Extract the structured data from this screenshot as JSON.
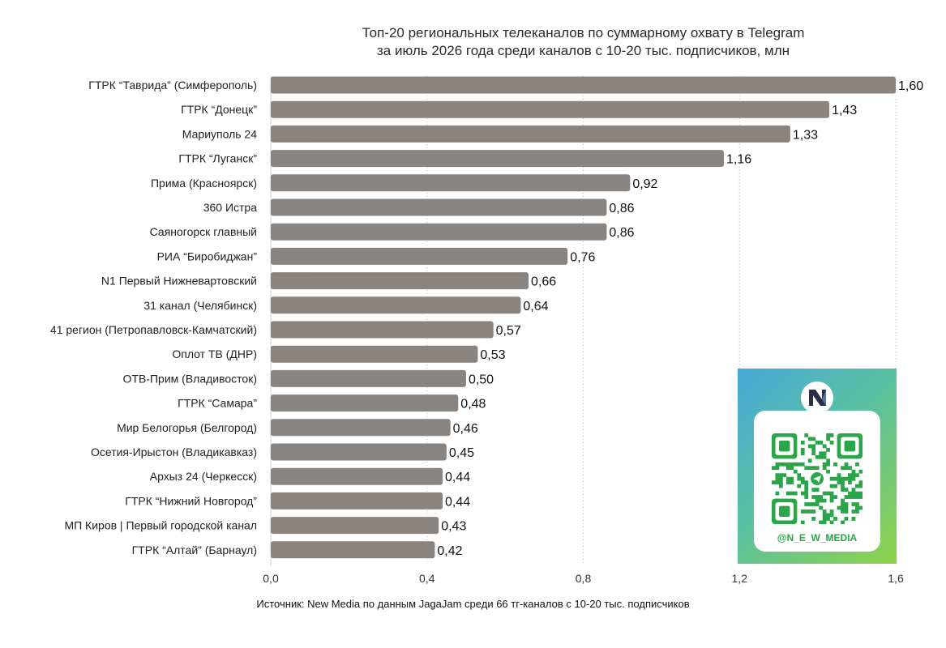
{
  "chart_data": {
    "type": "bar",
    "orientation": "horizontal",
    "title": "Топ-20 региональных телеканалов по суммарному охвату в Telegram за июль 2026 года среди каналов с 10-20 тыс. подписчиков, млн",
    "title_lines": [
      "Топ-20 региональных телеканалов по суммарному охвату в Telegram",
      "за июль 2026 года среди каналов с 10-20 тыс. подписчиков, млн"
    ],
    "categories": [
      "ГТРК “Таврида” (Симферополь)",
      "ГТРК “Донецк”",
      "Мариуполь 24",
      "ГТРК “Луганск”",
      "Прима (Красноярск)",
      "360 Истра",
      "Саяногорск главный",
      "РИА “Биробиджан”",
      "N1 Первый Нижневартовский",
      "31 канал (Челябинск)",
      "41 регион (Петропавловск-Камчатский)",
      "Оплот ТВ (ДНР)",
      "ОТВ-Прим (Владивосток)",
      "ГТРК “Самара”",
      "Мир Белогорья (Белгород)",
      "Осетия-Ирыстон (Владикавказ)",
      "Архыз 24 (Черкесск)",
      "ГТРК “Нижний Новгород”",
      "МП Киров | Первый городской канал",
      "ГТРК “Алтай” (Барнаул)"
    ],
    "values": [
      1.6,
      1.43,
      1.33,
      1.16,
      0.92,
      0.86,
      0.86,
      0.76,
      0.66,
      0.64,
      0.57,
      0.53,
      0.5,
      0.48,
      0.46,
      0.45,
      0.44,
      0.44,
      0.43,
      0.42
    ],
    "value_labels": [
      "1,60",
      "1,43",
      "1,33",
      "1,16",
      "0,92",
      "0,86",
      "0,86",
      "0,76",
      "0,66",
      "0,64",
      "0,57",
      "0,53",
      "0,50",
      "0,48",
      "0,46",
      "0,45",
      "0,44",
      "0,44",
      "0,43",
      "0,42"
    ],
    "xlim": [
      0,
      1.6
    ],
    "xticks": [
      0,
      0.4,
      0.8,
      1.2,
      1.6
    ],
    "xtick_labels": [
      "0,0",
      "0,4",
      "0,8",
      "1,2",
      "1,6"
    ],
    "grid": "vertical dotted",
    "bar_color": "#8a8480",
    "source": "Источник: New Media по данным JagaJam среди 66 тг-каналов с 10-20 тыс. подписчиков"
  },
  "qr_card": {
    "handle": "@N_E_W_MEDIA",
    "logo_icon": "new-media-logo-icon",
    "telegram_icon": "telegram-icon",
    "gradient_start": "#49a9d9",
    "gradient_end": "#8fd24a",
    "handle_color": "#2aa548"
  }
}
